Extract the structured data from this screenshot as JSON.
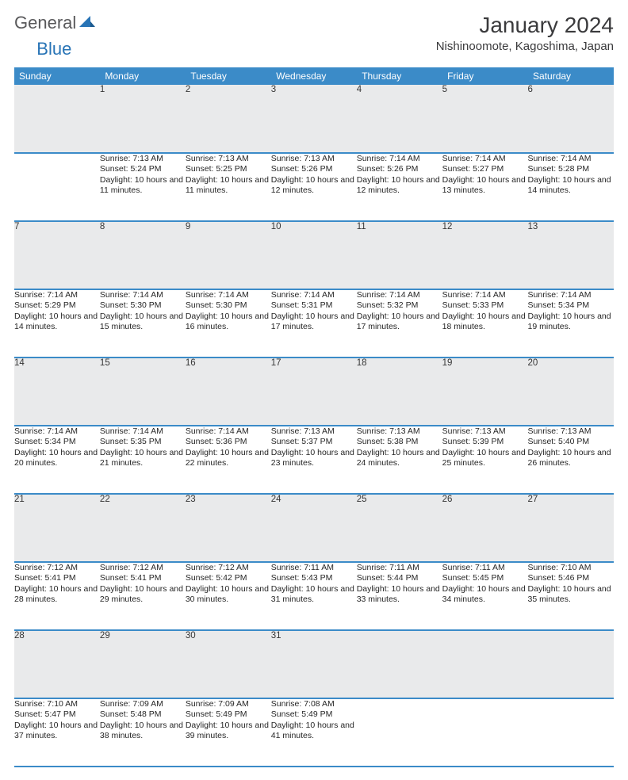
{
  "brand": {
    "part1": "General",
    "part2": "Blue"
  },
  "title": "January 2024",
  "location": "Nishinoomote, Kagoshima, Japan",
  "colors": {
    "header_bg": "#3b8bc8",
    "header_text": "#ffffff",
    "daynum_bg": "#e9eaeb",
    "rule": "#3b8bc8",
    "brand_gray": "#59595b",
    "brand_blue": "#2874b6"
  },
  "weekdays": [
    "Sunday",
    "Monday",
    "Tuesday",
    "Wednesday",
    "Thursday",
    "Friday",
    "Saturday"
  ],
  "weeks": [
    {
      "nums": [
        "",
        "1",
        "2",
        "3",
        "4",
        "5",
        "6"
      ],
      "cells": [
        null,
        {
          "sunrise": "7:13 AM",
          "sunset": "5:24 PM",
          "daylight": "10 hours and 11 minutes."
        },
        {
          "sunrise": "7:13 AM",
          "sunset": "5:25 PM",
          "daylight": "10 hours and 11 minutes."
        },
        {
          "sunrise": "7:13 AM",
          "sunset": "5:26 PM",
          "daylight": "10 hours and 12 minutes."
        },
        {
          "sunrise": "7:14 AM",
          "sunset": "5:26 PM",
          "daylight": "10 hours and 12 minutes."
        },
        {
          "sunrise": "7:14 AM",
          "sunset": "5:27 PM",
          "daylight": "10 hours and 13 minutes."
        },
        {
          "sunrise": "7:14 AM",
          "sunset": "5:28 PM",
          "daylight": "10 hours and 14 minutes."
        }
      ]
    },
    {
      "nums": [
        "7",
        "8",
        "9",
        "10",
        "11",
        "12",
        "13"
      ],
      "cells": [
        {
          "sunrise": "7:14 AM",
          "sunset": "5:29 PM",
          "daylight": "10 hours and 14 minutes."
        },
        {
          "sunrise": "7:14 AM",
          "sunset": "5:30 PM",
          "daylight": "10 hours and 15 minutes."
        },
        {
          "sunrise": "7:14 AM",
          "sunset": "5:30 PM",
          "daylight": "10 hours and 16 minutes."
        },
        {
          "sunrise": "7:14 AM",
          "sunset": "5:31 PM",
          "daylight": "10 hours and 17 minutes."
        },
        {
          "sunrise": "7:14 AM",
          "sunset": "5:32 PM",
          "daylight": "10 hours and 17 minutes."
        },
        {
          "sunrise": "7:14 AM",
          "sunset": "5:33 PM",
          "daylight": "10 hours and 18 minutes."
        },
        {
          "sunrise": "7:14 AM",
          "sunset": "5:34 PM",
          "daylight": "10 hours and 19 minutes."
        }
      ]
    },
    {
      "nums": [
        "14",
        "15",
        "16",
        "17",
        "18",
        "19",
        "20"
      ],
      "cells": [
        {
          "sunrise": "7:14 AM",
          "sunset": "5:34 PM",
          "daylight": "10 hours and 20 minutes."
        },
        {
          "sunrise": "7:14 AM",
          "sunset": "5:35 PM",
          "daylight": "10 hours and 21 minutes."
        },
        {
          "sunrise": "7:14 AM",
          "sunset": "5:36 PM",
          "daylight": "10 hours and 22 minutes."
        },
        {
          "sunrise": "7:13 AM",
          "sunset": "5:37 PM",
          "daylight": "10 hours and 23 minutes."
        },
        {
          "sunrise": "7:13 AM",
          "sunset": "5:38 PM",
          "daylight": "10 hours and 24 minutes."
        },
        {
          "sunrise": "7:13 AM",
          "sunset": "5:39 PM",
          "daylight": "10 hours and 25 minutes."
        },
        {
          "sunrise": "7:13 AM",
          "sunset": "5:40 PM",
          "daylight": "10 hours and 26 minutes."
        }
      ]
    },
    {
      "nums": [
        "21",
        "22",
        "23",
        "24",
        "25",
        "26",
        "27"
      ],
      "cells": [
        {
          "sunrise": "7:12 AM",
          "sunset": "5:41 PM",
          "daylight": "10 hours and 28 minutes."
        },
        {
          "sunrise": "7:12 AM",
          "sunset": "5:41 PM",
          "daylight": "10 hours and 29 minutes."
        },
        {
          "sunrise": "7:12 AM",
          "sunset": "5:42 PM",
          "daylight": "10 hours and 30 minutes."
        },
        {
          "sunrise": "7:11 AM",
          "sunset": "5:43 PM",
          "daylight": "10 hours and 31 minutes."
        },
        {
          "sunrise": "7:11 AM",
          "sunset": "5:44 PM",
          "daylight": "10 hours and 33 minutes."
        },
        {
          "sunrise": "7:11 AM",
          "sunset": "5:45 PM",
          "daylight": "10 hours and 34 minutes."
        },
        {
          "sunrise": "7:10 AM",
          "sunset": "5:46 PM",
          "daylight": "10 hours and 35 minutes."
        }
      ]
    },
    {
      "nums": [
        "28",
        "29",
        "30",
        "31",
        "",
        "",
        ""
      ],
      "cells": [
        {
          "sunrise": "7:10 AM",
          "sunset": "5:47 PM",
          "daylight": "10 hours and 37 minutes."
        },
        {
          "sunrise": "7:09 AM",
          "sunset": "5:48 PM",
          "daylight": "10 hours and 38 minutes."
        },
        {
          "sunrise": "7:09 AM",
          "sunset": "5:49 PM",
          "daylight": "10 hours and 39 minutes."
        },
        {
          "sunrise": "7:08 AM",
          "sunset": "5:49 PM",
          "daylight": "10 hours and 41 minutes."
        },
        null,
        null,
        null
      ]
    }
  ],
  "labels": {
    "sunrise": "Sunrise:",
    "sunset": "Sunset:",
    "daylight": "Daylight:"
  }
}
